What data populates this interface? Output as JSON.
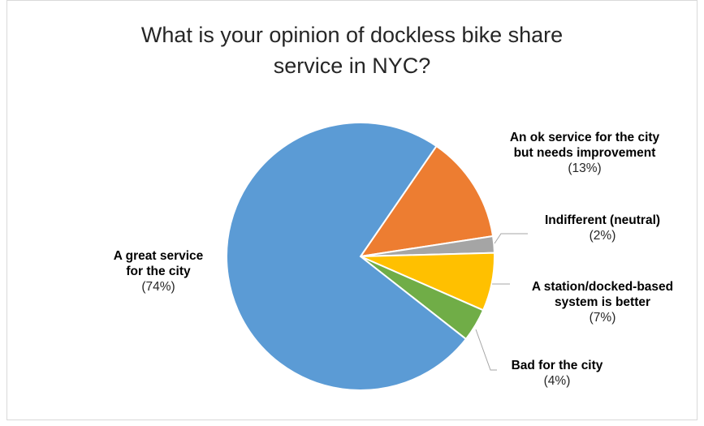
{
  "chart_data": {
    "type": "pie",
    "title_lines": [
      "What is your opinion of dockless bike share",
      "service in NYC?"
    ],
    "slices": [
      {
        "label_lines": [
          "An ok service for the city",
          "but needs improvement"
        ],
        "percent_label": "(13%)",
        "value": 13,
        "color": "#ED7D31"
      },
      {
        "label_lines": [
          "Indifferent (neutral)"
        ],
        "percent_label": "(2%)",
        "value": 2,
        "color": "#A5A5A5"
      },
      {
        "label_lines": [
          "A station/docked-based",
          "system is better"
        ],
        "percent_label": "(7%)",
        "value": 7,
        "color": "#FFC000"
      },
      {
        "label_lines": [
          "Bad for the city"
        ],
        "percent_label": "(4%)",
        "value": 4,
        "color": "#70AD47"
      },
      {
        "label_lines": [
          "A great service",
          "for the city"
        ],
        "percent_label": "(74%)",
        "value": 74,
        "color": "#5B9BD5"
      }
    ]
  }
}
